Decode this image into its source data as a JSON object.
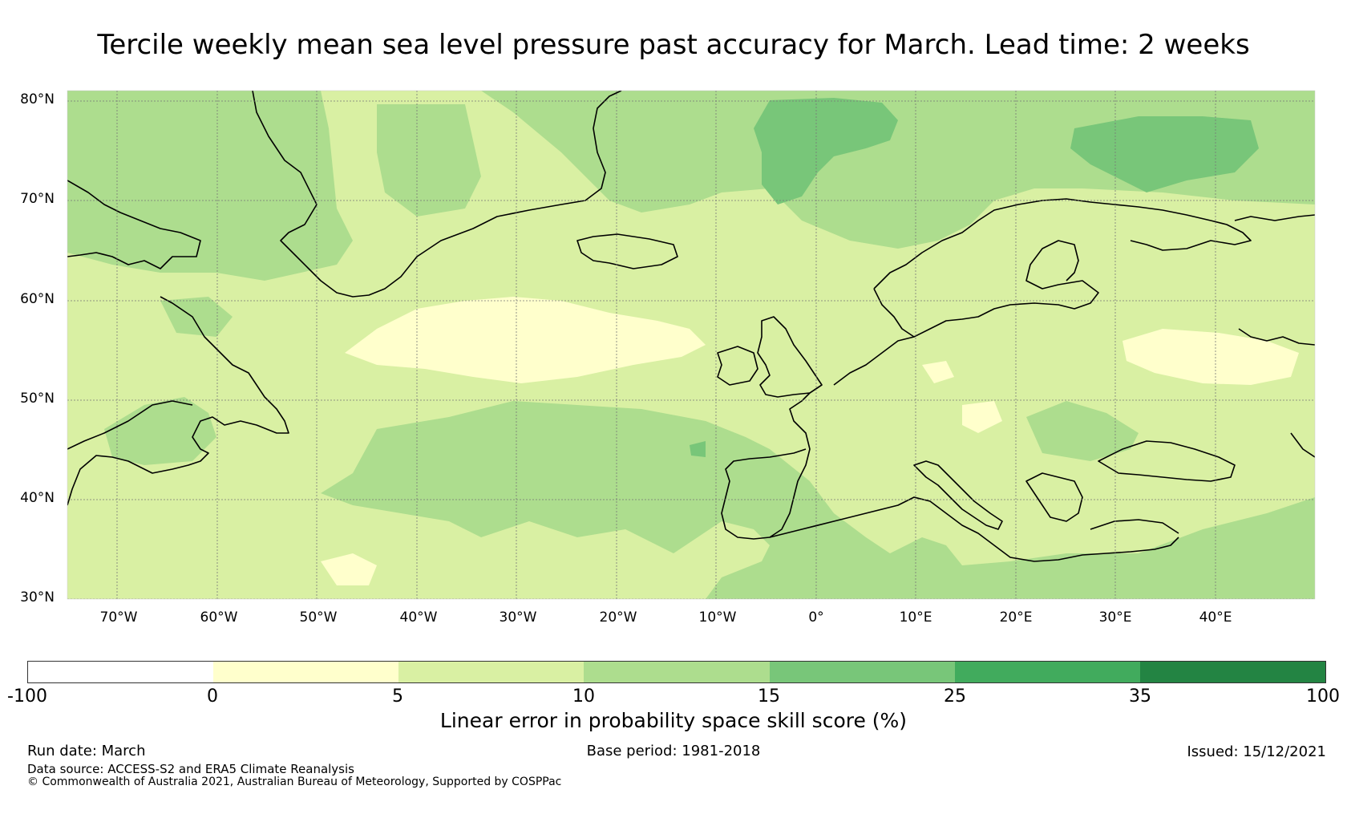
{
  "title": "Tercile weekly mean sea level pressure past accuracy for March. Lead time: 2 weeks",
  "map": {
    "lat_labels": [
      "80°N",
      "70°N",
      "60°N",
      "50°N",
      "40°N",
      "30°N"
    ],
    "lon_labels": [
      "70°W",
      "60°W",
      "50°W",
      "40°W",
      "30°W",
      "20°W",
      "10°W",
      "0°",
      "10°E",
      "20°E",
      "30°E",
      "40°E"
    ],
    "extent": {
      "lon_min": -75,
      "lon_max": 50,
      "lat_min": 30,
      "lat_max": 81
    }
  },
  "colorbar": {
    "label": "Linear error in probability space skill score (%)",
    "ticks": [
      "-100",
      "0",
      "5",
      "10",
      "15",
      "25",
      "35",
      "100"
    ],
    "colors": [
      "#ffffff",
      "#ffffcc",
      "#d9f0a3",
      "#addd8e",
      "#78c679",
      "#41ab5d",
      "#238443"
    ]
  },
  "footer": {
    "run_date": "Run date: March",
    "base_period": "Base period: 1981-2018",
    "issued": "Issued: 15/12/2021",
    "data_source": "Data source: ACCESS-S2 and ERA5 Climate Reanalysis",
    "copyright": "© Commonwealth of Australia 2021, Australian Bureau of Meteorology, Supported by COSPPac"
  }
}
